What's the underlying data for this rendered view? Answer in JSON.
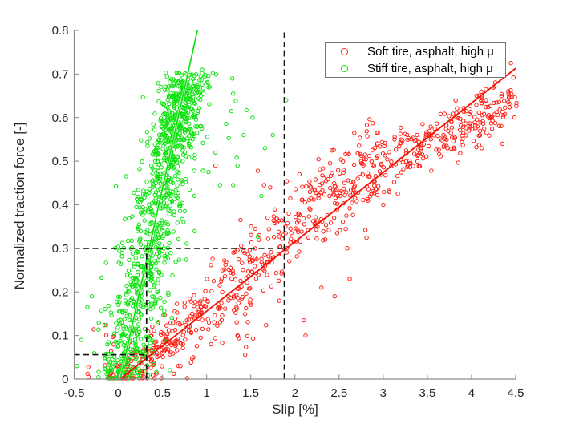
{
  "chart_data": {
    "type": "scatter",
    "title": "",
    "xlabel": "Slip [%]",
    "ylabel": "Normalized traction force [-]",
    "xlim": [
      -0.5,
      4.5
    ],
    "ylim": [
      0,
      0.8
    ],
    "xticks": [
      -0.5,
      0,
      0.5,
      1,
      1.5,
      2,
      2.5,
      3,
      3.5,
      4,
      4.5
    ],
    "xtick_labels": [
      "-0.5",
      "0",
      "0.5",
      "1",
      "1.5",
      "2",
      "2.5",
      "3",
      "3.5",
      "4",
      "4.5"
    ],
    "yticks": [
      0,
      0.1,
      0.2,
      0.3,
      0.4,
      0.5,
      0.6,
      0.7,
      0.8
    ],
    "ytick_labels": [
      "0",
      "0.1",
      "0.2",
      "0.3",
      "0.4",
      "0.5",
      "0.6",
      "0.7",
      "0.8"
    ],
    "grid": false,
    "box": false,
    "axis_color": "#8c8c8c",
    "text_color": "#262626",
    "legend": {
      "position": "top-right",
      "border_color": "#737373",
      "entries": [
        {
          "label": "Soft tire, asphalt, high μ",
          "color": "#ff1f14",
          "marker": "circle"
        },
        {
          "label": "Stiff tire, asphalt, high μ",
          "color": "#0ce20c",
          "marker": "circle"
        }
      ]
    },
    "series": [
      {
        "name": "Soft tire, asphalt, high μ",
        "marker": "open-circle",
        "color": "#ff1f14",
        "line_color": "#f01407",
        "fit_line": {
          "x": [
            0.02,
            4.5
          ],
          "y": [
            0.0,
            0.713
          ]
        },
        "cloud": {
          "seed": 11,
          "n": 800,
          "slip_min": -0.12,
          "slip_max": 4.52,
          "slope": 0.158,
          "noise_sd_low": 0.025,
          "noise_sd_mid": 0.045,
          "noise_sd_high": 0.03,
          "mid_bump": {
            "center": 2.35,
            "width": 0.85,
            "amp": 0.045
          },
          "end_sag": {
            "start": 3.1,
            "span": 1.4,
            "amp": 0.07
          },
          "low_tail_frac": 0.08,
          "low_tail_min": 0.03,
          "low_tail_max": 0.16,
          "left_scatter": {
            "n": 25,
            "s_min": -0.35,
            "s_max": 0.45,
            "f_max": 0.13
          }
        },
        "outliers": [
          [
            1.1,
            0.49
          ],
          [
            1.58,
            0.478
          ],
          [
            1.65,
            0.445
          ],
          [
            1.72,
            0.44
          ],
          [
            2.1,
            0.135
          ],
          [
            2.3,
            0.21
          ],
          [
            2.62,
            0.23
          ],
          [
            2.15,
            0.325
          ],
          [
            2.45,
            0.19
          ],
          [
            1.35,
            0.1
          ],
          [
            0.85,
            0.05
          ],
          [
            1.05,
            0.08
          ],
          [
            2.05,
            0.47
          ],
          [
            2.55,
            0.48
          ],
          [
            3.0,
            0.4
          ],
          [
            4.35,
            0.54
          ],
          [
            2.12,
            0.1
          ]
        ]
      },
      {
        "name": "Stiff tire, asphalt, high μ",
        "marker": "open-circle",
        "color": "#0ce20c",
        "line_color": "#0ae00a",
        "fit_line": {
          "x": [
            0.022,
            0.895
          ],
          "y": [
            0.0,
            0.8
          ]
        },
        "cloud": {
          "seed": 29,
          "n": 1060,
          "line_x0": 0.02,
          "inv_slope": 1.1,
          "s_noise_sd_low": 0.16,
          "s_noise_sd_high": 0.14,
          "low_frac": 0.52,
          "low_max": 0.46,
          "low_pow": 1.25,
          "high_mean": 0.585,
          "high_sd": 0.08,
          "f_cap": 0.703,
          "cap_band_lo": 0.66,
          "cap_band_span": 0.045,
          "s_min": -0.49,
          "s_max": 2.0
        },
        "outliers": [
          [
            1.02,
            0.475
          ],
          [
            1.3,
            0.655
          ],
          [
            1.33,
            0.638
          ],
          [
            1.28,
            0.615
          ],
          [
            1.22,
            0.586
          ],
          [
            1.45,
            0.617
          ],
          [
            1.25,
            0.553
          ],
          [
            1.1,
            0.52
          ],
          [
            1.35,
            0.49
          ],
          [
            1.15,
            0.445
          ],
          [
            1.52,
            0.6
          ],
          [
            1.58,
            0.327
          ],
          [
            1.62,
            0.42
          ],
          [
            1.3,
            0.445
          ],
          [
            1.75,
            0.56
          ],
          [
            1.9,
            0.64
          ],
          [
            1.29,
            0.69
          ],
          [
            1.42,
            0.56
          ],
          [
            1.66,
            0.53
          ],
          [
            1.34,
            0.508
          ],
          [
            -0.35,
            0.165
          ],
          [
            -0.42,
            0.09
          ],
          [
            -0.47,
            0.03
          ],
          [
            -0.3,
            0.19
          ],
          [
            0.95,
            0.71
          ]
        ]
      }
    ],
    "reference_lines": [
      {
        "name": "force-level-line",
        "type": "h",
        "y": 0.3,
        "x_range": [
          -0.5,
          1.88
        ]
      },
      {
        "name": "soft-tire-slip-line",
        "type": "v",
        "x": 1.88,
        "y_range": [
          0,
          0.8
        ]
      },
      {
        "name": "stiff-tire-slip-line",
        "type": "v",
        "x": 0.32,
        "y_range": [
          0,
          0.3
        ]
      },
      {
        "name": "soft-tire-low-force-line",
        "type": "h",
        "y": 0.056,
        "x_range": [
          -0.5,
          0.32
        ]
      }
    ],
    "reference_style": {
      "color": "#141414",
      "dash": "7 4.5"
    }
  }
}
